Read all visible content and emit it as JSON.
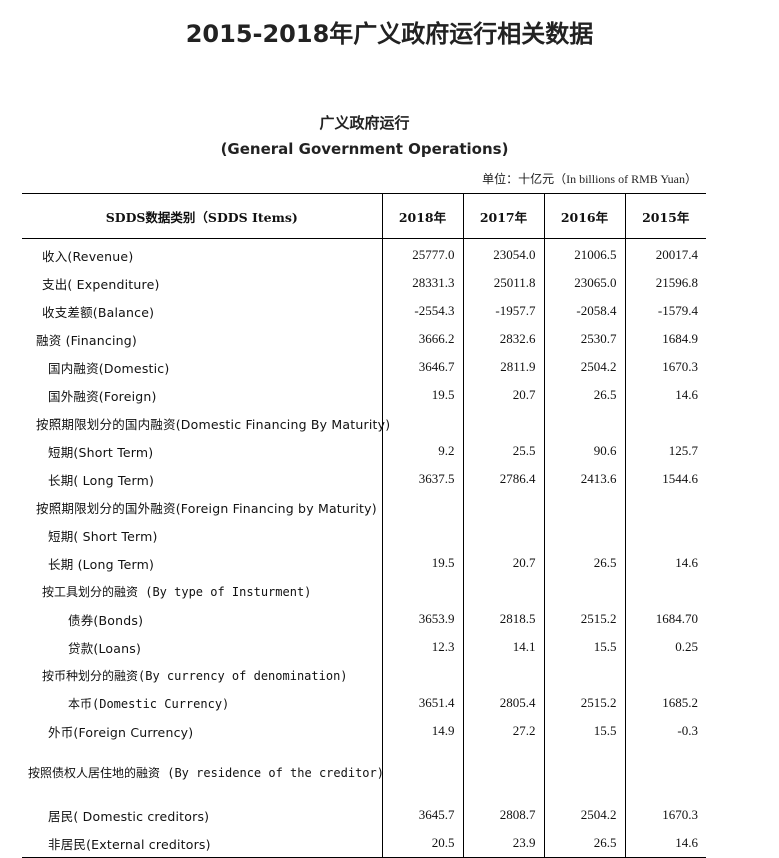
{
  "title": "2015-2018年广义政府运行相关数据",
  "subtitle_zh": "广义政府运行",
  "subtitle_en": "(General Government Operations)",
  "unit": "单位：十亿元（In billions of RMB Yuan）",
  "table": {
    "headers": [
      "SDDS数据类别（SDDS Items)",
      "2018年",
      "2017年",
      "2016年",
      "2015年"
    ],
    "rows": [
      {
        "label": "收入(Revenue)",
        "values": [
          "25777.0",
          "23054.0",
          "21006.5",
          "20017.4"
        ]
      },
      {
        "label": "支出(  Expenditure)",
        "values": [
          "28331.3",
          "25011.8",
          "23065.0",
          "21596.8"
        ]
      },
      {
        "label": "收支差额(Balance)",
        "values": [
          "-2554.3",
          "-1957.7",
          "-2058.4",
          "-1579.4"
        ]
      },
      {
        "label": "融资 (Financing)",
        "values": [
          "3666.2",
          "2832.6",
          "2530.7",
          "1684.9"
        ]
      },
      {
        "label": "国内融资(Domestic)",
        "values": [
          "3646.7",
          "2811.9",
          "2504.2",
          "1670.3"
        ]
      },
      {
        "label": "国外融资(Foreign)",
        "values": [
          "19.5",
          "20.7",
          "26.5",
          "14.6"
        ]
      },
      {
        "label": "按照期限划分的国内融资(Domestic Financing By Maturity)",
        "values": [
          "",
          "",
          "",
          ""
        ]
      },
      {
        "label": "短期(Short Term)",
        "values": [
          "9.2",
          "25.5",
          "90.6",
          "125.7"
        ]
      },
      {
        "label": "长期( Long Term)",
        "values": [
          "3637.5",
          "2786.4",
          "2413.6",
          "1544.6"
        ]
      },
      {
        "label": "按照期限划分的国外融资(Foreign Financing by Maturity)",
        "values": [
          "",
          "",
          "",
          ""
        ]
      },
      {
        "label": "短期( Short Term)",
        "values": [
          "",
          "",
          "",
          ""
        ]
      },
      {
        "label": "长期 (Long Term)",
        "values": [
          "19.5",
          "20.7",
          "26.5",
          "14.6"
        ]
      },
      {
        "label": "按工具划分的融资  (By type of Insturment)",
        "values": [
          "",
          "",
          "",
          ""
        ]
      },
      {
        "label": "债券(Bonds)",
        "values": [
          "3653.9",
          "2818.5",
          "2515.2",
          "1684.70"
        ]
      },
      {
        "label": "贷款(Loans)",
        "values": [
          "12.3",
          "14.1",
          "15.5",
          "0.25"
        ]
      },
      {
        "label": "按币种划分的融资(By currency of denomination)",
        "values": [
          "",
          "",
          "",
          ""
        ]
      },
      {
        "label": "本币(Domestic Currency)",
        "values": [
          "3651.4",
          "2805.4",
          "2515.2",
          "1685.2"
        ]
      },
      {
        "label": "外币(Foreign Currency)",
        "values": [
          "14.9",
          "27.2",
          "15.5",
          "-0.3"
        ]
      },
      {
        "label": "按照债权人居住地的融资  (By residence of the creditor)",
        "values": [
          "",
          "",
          "",
          ""
        ]
      },
      {
        "label": "居民( Domestic creditors)",
        "values": [
          "3645.7",
          "2808.7",
          "2504.2",
          "1670.3"
        ]
      },
      {
        "label": "非居民(External creditors)",
        "values": [
          "20.5",
          "23.9",
          "26.5",
          "14.6"
        ]
      }
    ]
  }
}
